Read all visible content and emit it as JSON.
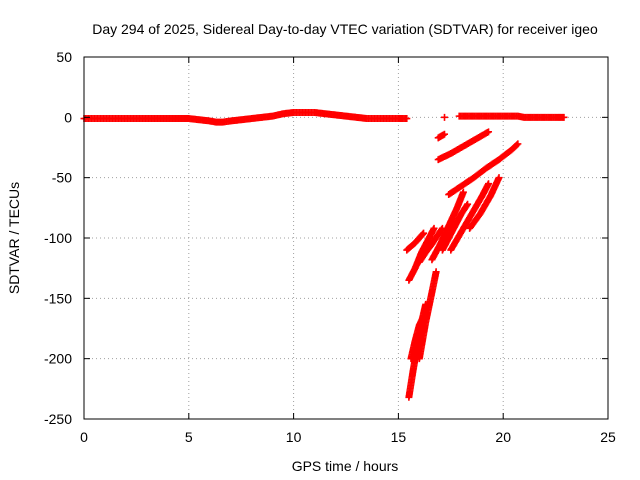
{
  "chart_data": {
    "type": "scatter",
    "title": "Day 294 of 2025, Sidereal Day-to-day VTEC variation (SDTVAR) for receiver igeo",
    "xlabel": "GPS time / hours",
    "ylabel": "SDTVAR / TECUs",
    "xlim": [
      0,
      25
    ],
    "ylim": [
      -250,
      50
    ],
    "xticks": [
      "0",
      "5",
      "10",
      "15",
      "20",
      "25"
    ],
    "yticks": [
      "50",
      "0",
      "-50",
      "-100",
      "-150",
      "-200",
      "-250"
    ],
    "grid": true,
    "marker": "+",
    "point_color": "#ff0000",
    "series": [
      {
        "x": [
          0.0,
          0.5,
          1.0,
          1.5,
          2.0,
          2.5,
          3.0,
          3.5,
          4.0,
          4.5,
          5.0,
          5.5,
          6.0,
          6.3,
          6.6,
          7.0,
          7.5,
          8.0,
          8.5,
          9.0,
          9.5,
          10.0,
          10.5,
          11.0,
          11.5,
          12.0,
          12.5,
          13.0,
          13.5,
          14.0,
          14.5,
          15.0,
          15.4
        ],
        "y": [
          -1,
          -1,
          -1,
          -1,
          -1,
          -1,
          -1,
          -1,
          -1,
          -1,
          -1,
          -2,
          -3,
          -4,
          -4,
          -3,
          -2,
          -1,
          0,
          1,
          3,
          4,
          4,
          4,
          3,
          2,
          1,
          0,
          -1,
          -1,
          -1,
          -1,
          -1
        ]
      },
      {
        "x": [
          17.2
        ],
        "y": [
          0
        ]
      },
      {
        "x": [
          17.9,
          18.3,
          18.7,
          19.1,
          19.5,
          19.9,
          20.3,
          20.7,
          21.0,
          21.4,
          21.8,
          22.2,
          22.6,
          22.9
        ],
        "y": [
          1,
          1,
          1,
          1,
          1,
          1,
          1,
          1,
          0,
          0,
          0,
          0,
          0,
          0
        ]
      },
      {
        "x": [
          16.9,
          17.0,
          17.1,
          17.2
        ],
        "y": [
          -17,
          -16,
          -15,
          -14
        ]
      },
      {
        "x": [
          16.9,
          17.5,
          18.0,
          18.5,
          19.0,
          19.3
        ],
        "y": [
          -35,
          -30,
          -25,
          -20,
          -15,
          -12
        ]
      },
      {
        "x": [
          17.1,
          17.4,
          17.7,
          18.0,
          18.3
        ],
        "y": [
          -110,
          -100,
          -90,
          -80,
          -72
        ]
      },
      {
        "x": [
          17.4,
          18.0,
          18.6,
          19.2,
          19.8,
          20.4,
          20.7
        ],
        "y": [
          -64,
          -57,
          -50,
          -42,
          -35,
          -27,
          -22
        ]
      },
      {
        "x": [
          17.5,
          18.0,
          18.5,
          19.0,
          19.3
        ],
        "y": [
          -110,
          -95,
          -80,
          -65,
          -55
        ]
      },
      {
        "x": [
          16.6,
          17.0,
          17.4,
          17.8,
          18.1
        ],
        "y": [
          -118,
          -105,
          -90,
          -75,
          -62
        ]
      },
      {
        "x": [
          16.0,
          16.3,
          16.6,
          16.9,
          17.1
        ],
        "y": [
          -120,
          -112,
          -105,
          -97,
          -92
        ]
      },
      {
        "x": [
          15.4,
          15.6,
          15.8,
          16.0,
          16.2
        ],
        "y": [
          -110,
          -107,
          -104,
          -100,
          -96
        ]
      },
      {
        "x": [
          15.5,
          15.8,
          16.1,
          16.4,
          16.7
        ],
        "y": [
          -135,
          -125,
          -112,
          -102,
          -92
        ]
      },
      {
        "x": [
          15.5,
          15.7,
          15.9,
          16.1,
          16.3
        ],
        "y": [
          -232,
          -210,
          -190,
          -170,
          -155
        ]
      },
      {
        "x": [
          16.0,
          16.3,
          16.6,
          16.8
        ],
        "y": [
          -200,
          -170,
          -145,
          -128
        ]
      },
      {
        "x": [
          15.6,
          15.8,
          16.0,
          16.2
        ],
        "y": [
          -200,
          -185,
          -172,
          -165
        ]
      },
      {
        "x": [
          18.4,
          18.9,
          19.4,
          19.8
        ],
        "y": [
          -92,
          -80,
          -65,
          -50
        ]
      }
    ]
  }
}
